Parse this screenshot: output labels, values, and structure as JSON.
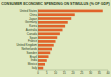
{
  "chart_data": {
    "type": "bar",
    "orientation": "horizontal",
    "title": "CONSUMER ECONOMIC SPENDING ON STIMULUS (% OF GDP)",
    "categories": [
      "United States",
      "China",
      "Japan",
      "Germany",
      "Korea",
      "Australia",
      "Canada",
      "Spain",
      "France",
      "United Kingdom",
      "Netherlands",
      "Sweden",
      "Brazil",
      "India",
      "Mexico",
      "Italy"
    ],
    "values": [
      37,
      21,
      19,
      17,
      15.5,
      14,
      12.5,
      11,
      10,
      9,
      8,
      7,
      6,
      5,
      4,
      3
    ],
    "color": "#e0632a",
    "xlim": [
      0,
      40
    ],
    "xticks": [
      0,
      5,
      10,
      15,
      20,
      25,
      30,
      35,
      40
    ],
    "grid": false
  }
}
